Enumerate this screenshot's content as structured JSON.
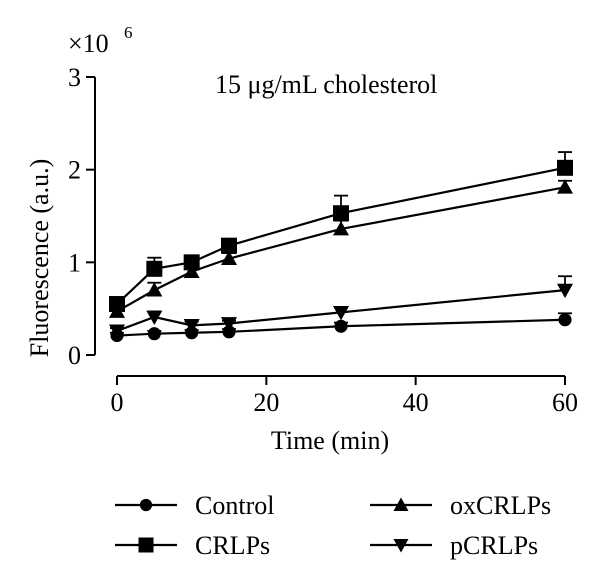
{
  "chart_data": {
    "type": "line",
    "title": "15 μg/mL cholesterol",
    "xlabel": "Time (min)",
    "ylabel": "Fluorescence (a.u.)",
    "y_multiplier": "×10",
    "y_multiplier_exp": "6",
    "xlim": [
      0,
      60
    ],
    "ylim": [
      0,
      3
    ],
    "x_ticks": [
      0,
      20,
      40,
      60
    ],
    "x_tick_labels": [
      "0",
      "20",
      "40",
      "60"
    ],
    "y_ticks": [
      0,
      1,
      2,
      3
    ],
    "y_tick_labels": [
      "0",
      "1",
      "2",
      "3"
    ],
    "x": [
      0,
      5,
      10,
      15,
      30,
      60
    ],
    "grid": false,
    "legend_position": "bottom",
    "series": [
      {
        "name": "Control",
        "marker": "circle",
        "values": [
          0.21,
          0.23,
          0.24,
          0.25,
          0.31,
          0.38
        ],
        "errors": [
          0.03,
          0.03,
          0.03,
          0.03,
          0.04,
          0.07
        ]
      },
      {
        "name": "oxCRLPs",
        "marker": "triangle-up",
        "values": [
          0.47,
          0.7,
          0.9,
          1.04,
          1.36,
          1.81
        ],
        "errors": [
          0.05,
          0.08,
          0.07,
          0.06,
          0.09,
          0.07
        ]
      },
      {
        "name": "CRLPs",
        "marker": "square",
        "values": [
          0.55,
          0.93,
          1.0,
          1.18,
          1.53,
          2.02
        ],
        "errors": [
          0.05,
          0.12,
          0.06,
          0.07,
          0.19,
          0.17
        ]
      },
      {
        "name": "pCRLPs",
        "marker": "triangle-down",
        "values": [
          0.26,
          0.41,
          0.32,
          0.34,
          0.46,
          0.7
        ],
        "errors": [
          0.03,
          0.06,
          0.04,
          0.03,
          0.05,
          0.15
        ]
      }
    ],
    "legend": [
      {
        "name": "Control",
        "marker": "circle"
      },
      {
        "name": "oxCRLPs",
        "marker": "triangle-up"
      },
      {
        "name": "CRLPs",
        "marker": "square"
      },
      {
        "name": "pCRLPs",
        "marker": "triangle-down"
      }
    ]
  }
}
